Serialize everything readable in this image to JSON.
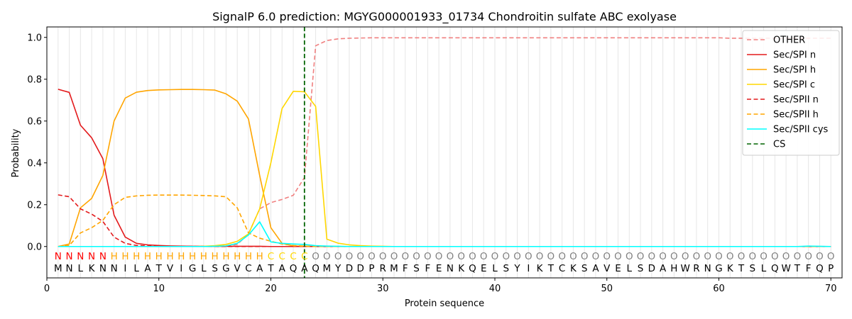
{
  "chart_data": {
    "type": "line",
    "title": "SignalP 6.0 prediction: MGYG000001933_01734 Chondroitin sulfate ABC exolyase",
    "xlabel": "Protein sequence",
    "ylabel": "Probability",
    "xlim": [
      0,
      71
    ],
    "ylim": [
      -0.15,
      1.05
    ],
    "x_ticks": [
      0,
      10,
      20,
      30,
      40,
      50,
      60,
      70
    ],
    "y_ticks": [
      0.0,
      0.2,
      0.4,
      0.6,
      0.8,
      1.0
    ],
    "grid": "vertical lines at each residue",
    "legend_position": "top-right",
    "cleavage_site": 23,
    "sequence": [
      "M",
      "N",
      "L",
      "K",
      "N",
      "N",
      "I",
      "L",
      "A",
      "T",
      "V",
      "I",
      "G",
      "L",
      "S",
      "G",
      "V",
      "C",
      "A",
      "T",
      "A",
      "Q",
      "A",
      "Q",
      "M",
      "Y",
      "D",
      "D",
      "P",
      "R",
      "M",
      "F",
      "S",
      "F",
      "E",
      "N",
      "K",
      "Q",
      "E",
      "L",
      "S",
      "Y",
      "I",
      "K",
      "T",
      "C",
      "K",
      "S",
      "A",
      "V",
      "E",
      "L",
      "S",
      "D",
      "A",
      "H",
      "W",
      "R",
      "N",
      "G",
      "K",
      "T",
      "S",
      "L",
      "Q",
      "W",
      "T",
      "F",
      "Q",
      "P"
    ],
    "region_labels": [
      "N",
      "N",
      "N",
      "N",
      "N",
      "H",
      "H",
      "H",
      "H",
      "H",
      "H",
      "H",
      "H",
      "H",
      "H",
      "H",
      "H",
      "H",
      "H",
      "C",
      "C",
      "C",
      "C",
      "O",
      "O",
      "O",
      "O",
      "O",
      "O",
      "O",
      "O",
      "O",
      "O",
      "O",
      "O",
      "O",
      "O",
      "O",
      "O",
      "O",
      "O",
      "O",
      "O",
      "O",
      "O",
      "O",
      "O",
      "O",
      "O",
      "O",
      "O",
      "O",
      "O",
      "O",
      "O",
      "O",
      "O",
      "O",
      "O",
      "O",
      "O",
      "O",
      "O",
      "O",
      "O",
      "O",
      "O",
      "O",
      "O",
      "O"
    ],
    "region_colors": {
      "N": "#ff0000",
      "H": "#ffa500",
      "C": "#ffd700",
      "O": "#808080"
    },
    "series": [
      {
        "name": "OTHER",
        "color": "#f08080",
        "dash": "dashed",
        "values": [
          0,
          0,
          0,
          0,
          0,
          0,
          0,
          0,
          0,
          0,
          0,
          0,
          0,
          0,
          0,
          0.003,
          0.01,
          0.06,
          0.18,
          0.21,
          0.225,
          0.245,
          0.33,
          0.96,
          0.985,
          0.993,
          0.996,
          0.997,
          0.998,
          0.998,
          0.998,
          0.998,
          0.998,
          0.998,
          0.998,
          0.998,
          0.998,
          0.998,
          0.998,
          0.998,
          0.998,
          0.998,
          0.998,
          0.998,
          0.998,
          0.998,
          0.998,
          0.998,
          0.998,
          0.998,
          0.998,
          0.998,
          0.998,
          0.998,
          0.998,
          0.998,
          0.998,
          0.998,
          0.998,
          0.998,
          0.996,
          0.996,
          0.996,
          0.996,
          0.996,
          0.996,
          0.996,
          0.996,
          0.996,
          0.996
        ]
      },
      {
        "name": "Sec/SPI n",
        "color": "#e31a1c",
        "dash": "solid",
        "values": [
          0.752,
          0.737,
          0.58,
          0.52,
          0.42,
          0.15,
          0.045,
          0.015,
          0.008,
          0.005,
          0.003,
          0.002,
          0.001,
          0.001,
          0.001,
          0.001,
          0.001,
          0.001,
          0.001,
          0,
          0,
          0,
          0,
          0,
          0,
          0,
          0,
          0,
          0,
          0,
          0,
          0,
          0,
          0,
          0,
          0,
          0,
          0,
          0,
          0,
          0,
          0,
          0,
          0,
          0,
          0,
          0,
          0,
          0,
          0,
          0,
          0,
          0,
          0,
          0,
          0,
          0,
          0,
          0,
          0,
          0,
          0,
          0,
          0,
          0,
          0,
          0,
          0,
          0,
          0
        ]
      },
      {
        "name": "Sec/SPI h",
        "color": "#ffa500",
        "dash": "solid",
        "values": [
          0,
          0.012,
          0.185,
          0.23,
          0.34,
          0.6,
          0.71,
          0.738,
          0.746,
          0.749,
          0.75,
          0.751,
          0.751,
          0.75,
          0.748,
          0.73,
          0.695,
          0.61,
          0.34,
          0.09,
          0.015,
          0.003,
          0.001,
          0,
          0,
          0,
          0,
          0,
          0,
          0,
          0,
          0,
          0,
          0,
          0,
          0,
          0,
          0,
          0,
          0,
          0,
          0,
          0,
          0,
          0,
          0,
          0,
          0,
          0,
          0,
          0,
          0,
          0,
          0,
          0,
          0,
          0,
          0,
          0,
          0,
          0,
          0,
          0,
          0,
          0,
          0,
          0,
          0,
          0,
          0
        ]
      },
      {
        "name": "Sec/SPI c",
        "color": "#ffd700",
        "dash": "solid",
        "values": [
          0,
          0,
          0,
          0,
          0,
          0,
          0,
          0,
          0,
          0,
          0,
          0,
          0,
          0.001,
          0.004,
          0.01,
          0.025,
          0.06,
          0.18,
          0.4,
          0.66,
          0.742,
          0.74,
          0.67,
          0.035,
          0.016,
          0.008,
          0.004,
          0.002,
          0.001,
          0,
          0,
          0,
          0,
          0,
          0,
          0,
          0,
          0,
          0,
          0,
          0,
          0,
          0,
          0,
          0,
          0,
          0,
          0,
          0,
          0,
          0,
          0,
          0,
          0,
          0,
          0,
          0,
          0,
          0,
          0,
          0,
          0,
          0,
          0,
          0,
          0,
          0,
          0,
          0
        ]
      },
      {
        "name": "Sec/SPII n",
        "color": "#e31a1c",
        "dash": "dashed",
        "values": [
          0.247,
          0.238,
          0.18,
          0.155,
          0.12,
          0.045,
          0.015,
          0.005,
          0.003,
          0.002,
          0.001,
          0.001,
          0.001,
          0,
          0,
          0,
          0,
          0,
          0,
          0,
          0,
          0,
          0,
          0,
          0,
          0,
          0,
          0,
          0,
          0,
          0,
          0,
          0,
          0,
          0,
          0,
          0,
          0,
          0,
          0,
          0,
          0,
          0,
          0,
          0,
          0,
          0,
          0,
          0,
          0,
          0,
          0,
          0,
          0,
          0,
          0,
          0,
          0,
          0,
          0,
          0,
          0,
          0,
          0,
          0,
          0,
          0,
          0,
          0,
          0
        ]
      },
      {
        "name": "Sec/SPII h",
        "color": "#ffa500",
        "dash": "dashed",
        "values": [
          0,
          0.005,
          0.065,
          0.09,
          0.125,
          0.2,
          0.235,
          0.242,
          0.245,
          0.246,
          0.246,
          0.246,
          0.245,
          0.244,
          0.242,
          0.238,
          0.185,
          0.065,
          0.04,
          0.025,
          0.012,
          0.005,
          0.002,
          0,
          0,
          0,
          0,
          0,
          0,
          0,
          0,
          0,
          0,
          0,
          0,
          0,
          0,
          0,
          0,
          0,
          0,
          0,
          0,
          0,
          0,
          0,
          0,
          0,
          0,
          0,
          0,
          0,
          0,
          0,
          0,
          0,
          0,
          0,
          0,
          0,
          0,
          0,
          0,
          0,
          0,
          0,
          0,
          0,
          0,
          0
        ]
      },
      {
        "name": "Sec/SPII cys",
        "color": "#00ffff",
        "dash": "solid",
        "values": [
          0,
          0,
          0,
          0,
          0,
          0,
          0,
          0,
          0,
          0,
          0,
          0,
          0,
          0,
          0.001,
          0.003,
          0.015,
          0.055,
          0.118,
          0.022,
          0.015,
          0.012,
          0.01,
          0.004,
          0.002,
          0.001,
          0,
          0,
          0,
          0,
          0,
          0,
          0,
          0,
          0,
          0,
          0,
          0,
          0,
          0,
          0,
          0,
          0,
          0,
          0,
          0,
          0,
          0,
          0,
          0,
          0,
          0,
          0,
          0,
          0,
          0,
          0,
          0,
          0,
          0,
          0,
          0,
          0,
          0,
          0,
          0,
          0,
          0.002,
          0.001,
          0
        ]
      }
    ],
    "cs_legend": {
      "name": "CS",
      "color": "#006400",
      "dash": "dashed"
    }
  }
}
